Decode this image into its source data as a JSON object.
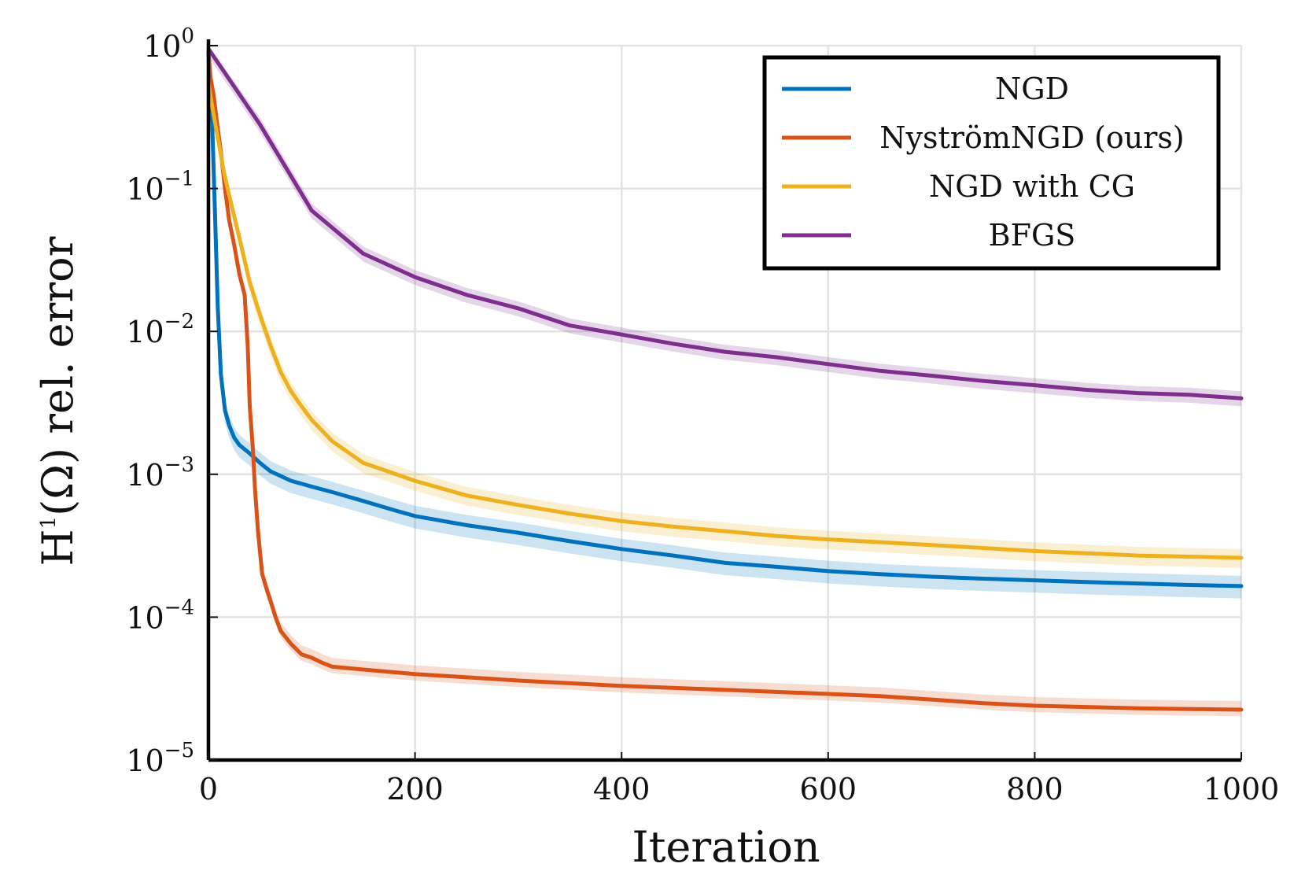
{
  "chart_data": {
    "type": "line",
    "title": "",
    "xlabel": "Iteration",
    "ylabel": {
      "base": "H",
      "sup": "1",
      "rest": "(Ω) rel. error"
    },
    "xlim": [
      0,
      1000
    ],
    "ylim": [
      1e-05,
      1
    ],
    "yscale": "log",
    "grid": true,
    "legend_position": "top-right",
    "x_ticks": [
      {
        "value": 0,
        "label": "0"
      },
      {
        "value": 200,
        "label": "200"
      },
      {
        "value": 400,
        "label": "400"
      },
      {
        "value": 600,
        "label": "600"
      },
      {
        "value": 800,
        "label": "800"
      },
      {
        "value": 1000,
        "label": "1000"
      }
    ],
    "y_ticks": [
      {
        "value": 1,
        "base": "10",
        "exp": "0"
      },
      {
        "value": 0.1,
        "base": "10",
        "exp": "−1"
      },
      {
        "value": 0.01,
        "base": "10",
        "exp": "−2"
      },
      {
        "value": 0.001,
        "base": "10",
        "exp": "−3"
      },
      {
        "value": 0.0001,
        "base": "10",
        "exp": "−4"
      },
      {
        "value": 1e-05,
        "base": "10",
        "exp": "−5"
      }
    ],
    "series": [
      {
        "name": "NGD",
        "color": "#0072BD",
        "x": [
          0,
          3,
          6,
          9,
          12,
          16,
          20,
          25,
          30,
          40,
          50,
          60,
          80,
          100,
          120,
          150,
          180,
          200,
          250,
          300,
          350,
          400,
          450,
          500,
          550,
          600,
          650,
          700,
          750,
          800,
          850,
          900,
          950,
          1000
        ],
        "y": [
          0.9,
          0.4,
          0.08,
          0.015,
          0.005,
          0.0028,
          0.0022,
          0.0018,
          0.0016,
          0.0014,
          0.0012,
          0.00105,
          0.0009,
          0.00082,
          0.00075,
          0.00065,
          0.00056,
          0.00051,
          0.00044,
          0.00039,
          0.00034,
          0.0003,
          0.00027,
          0.00024,
          0.000225,
          0.00021,
          0.0002,
          0.000192,
          0.000186,
          0.000181,
          0.000176,
          0.000172,
          0.000168,
          0.000165
        ],
        "band_lower_factor": 0.82,
        "band_upper_factor": 1.18
      },
      {
        "name": "NyströmNGD (ours)",
        "color": "#D95319",
        "x": [
          0,
          2,
          5,
          8,
          12,
          16,
          20,
          25,
          30,
          35,
          38,
          40,
          43,
          45,
          48,
          52,
          56,
          60,
          65,
          70,
          80,
          90,
          100,
          110,
          120,
          150,
          200,
          300,
          400,
          500,
          600,
          650,
          700,
          750,
          800,
          850,
          900,
          1000
        ],
        "y": [
          0.9,
          0.6,
          0.45,
          0.3,
          0.18,
          0.1,
          0.06,
          0.04,
          0.025,
          0.018,
          0.008,
          0.003,
          0.0015,
          0.0008,
          0.0004,
          0.0002,
          0.00016,
          0.00013,
          0.0001,
          8e-05,
          6.5e-05,
          5.5e-05,
          5.2e-05,
          4.8e-05,
          4.5e-05,
          4.3e-05,
          4e-05,
          3.6e-05,
          3.3e-05,
          3.1e-05,
          2.9e-05,
          2.8e-05,
          2.65e-05,
          2.5e-05,
          2.4e-05,
          2.35e-05,
          2.3e-05,
          2.25e-05
        ],
        "band_lower_factor": 0.9,
        "band_upper_factor": 1.15
      },
      {
        "name": "NGD with CG",
        "color": "#EDB120",
        "x": [
          0,
          3,
          8,
          15,
          20,
          30,
          40,
          50,
          60,
          70,
          80,
          90,
          100,
          120,
          150,
          200,
          250,
          300,
          350,
          400,
          450,
          500,
          550,
          600,
          650,
          700,
          750,
          800,
          850,
          900,
          950,
          1000
        ],
        "y": [
          0.55,
          0.4,
          0.25,
          0.13,
          0.09,
          0.045,
          0.022,
          0.013,
          0.008,
          0.0052,
          0.0038,
          0.003,
          0.0024,
          0.0017,
          0.0012,
          0.0009,
          0.00071,
          0.00061,
          0.00053,
          0.00047,
          0.00043,
          0.0004,
          0.00037,
          0.00035,
          0.000335,
          0.00032,
          0.000305,
          0.00029,
          0.00028,
          0.00027,
          0.000265,
          0.00026
        ],
        "band_lower_factor": 0.85,
        "band_upper_factor": 1.15
      },
      {
        "name": "BFGS",
        "color": "#7E2F8E",
        "x": [
          0,
          50,
          100,
          150,
          200,
          250,
          300,
          350,
          400,
          450,
          500,
          550,
          600,
          650,
          700,
          750,
          800,
          850,
          900,
          950,
          1000
        ],
        "y": [
          0.95,
          0.28,
          0.07,
          0.035,
          0.024,
          0.018,
          0.0145,
          0.011,
          0.0095,
          0.0082,
          0.0072,
          0.0066,
          0.0059,
          0.0053,
          0.0049,
          0.0045,
          0.0042,
          0.0039,
          0.0037,
          0.0036,
          0.0034
        ],
        "band_lower_factor": 0.88,
        "band_upper_factor": 1.12
      }
    ]
  }
}
